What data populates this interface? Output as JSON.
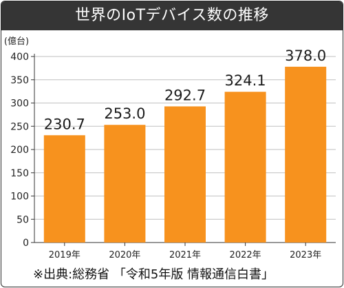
{
  "title": "世界のIoTデバイス数の推移",
  "source": "※出典:総務省 「令和5年版 情報通信白書」",
  "colors": {
    "bar": "#f7921e",
    "title_bg": "#353535",
    "axis": "#333333",
    "grid": "#bfbfbf"
  },
  "chart_data": {
    "type": "bar",
    "title": "世界のIoTデバイス数の推移",
    "ylabel": "(億台)",
    "xlabel": "",
    "categories": [
      "2019年",
      "2020年",
      "2021年",
      "2022年",
      "2023年"
    ],
    "values": [
      230.7,
      253.0,
      292.7,
      324.1,
      378.0
    ],
    "value_labels": [
      "230.7",
      "253.0",
      "292.7",
      "324.1",
      "378.0"
    ],
    "ylim": [
      0,
      400
    ],
    "yticks": [
      "0",
      "50",
      "100",
      "150",
      "200",
      "250",
      "300",
      "350",
      "400"
    ],
    "grid": true,
    "legend": "none"
  }
}
